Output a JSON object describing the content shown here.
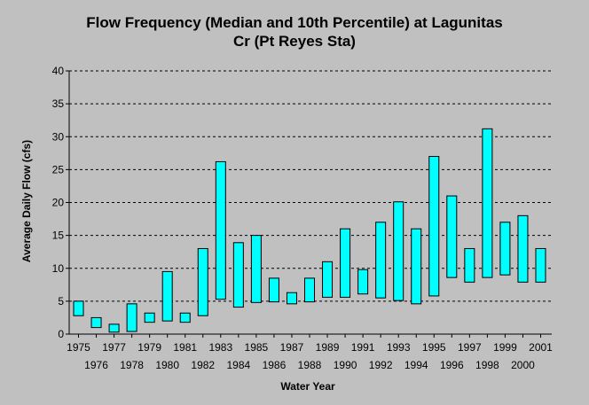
{
  "chart_data": {
    "type": "bar",
    "title_line1": "Flow Frequency (Median and 10th Percentile) at Lagunitas",
    "title_line2": "Cr (Pt Reyes Sta)",
    "xlabel": "Water Year",
    "ylabel": "Average Daily Flow (cfs)",
    "ylim": [
      0,
      40
    ],
    "yticks": [
      0,
      5,
      10,
      15,
      20,
      25,
      30,
      35,
      40
    ],
    "grid": true,
    "bar_color": "#00ffff",
    "categories": [
      "1975",
      "1976",
      "1977",
      "1978",
      "1979",
      "1980",
      "1981",
      "1982",
      "1983",
      "1984",
      "1985",
      "1986",
      "1987",
      "1988",
      "1989",
      "1990",
      "1991",
      "1992",
      "1993",
      "1994",
      "1995",
      "1996",
      "1997",
      "1998",
      "1999",
      "2000",
      "2001"
    ],
    "low": [
      2.8,
      1.0,
      0.3,
      0.4,
      1.8,
      2.0,
      1.8,
      2.8,
      5.3,
      4.1,
      4.8,
      4.9,
      4.6,
      4.9,
      5.6,
      5.6,
      6.1,
      5.5,
      5.1,
      4.6,
      5.8,
      8.6,
      7.9,
      8.6,
      9.0,
      7.9,
      7.9
    ],
    "high": [
      5.0,
      2.5,
      1.5,
      4.6,
      3.2,
      9.5,
      3.2,
      13.0,
      26.2,
      13.9,
      15.0,
      8.5,
      6.3,
      8.5,
      11.0,
      16.0,
      9.8,
      17.0,
      20.1,
      16.0,
      27.0,
      21.0,
      13.0,
      31.2,
      17.0,
      18.0,
      13.0
    ]
  }
}
